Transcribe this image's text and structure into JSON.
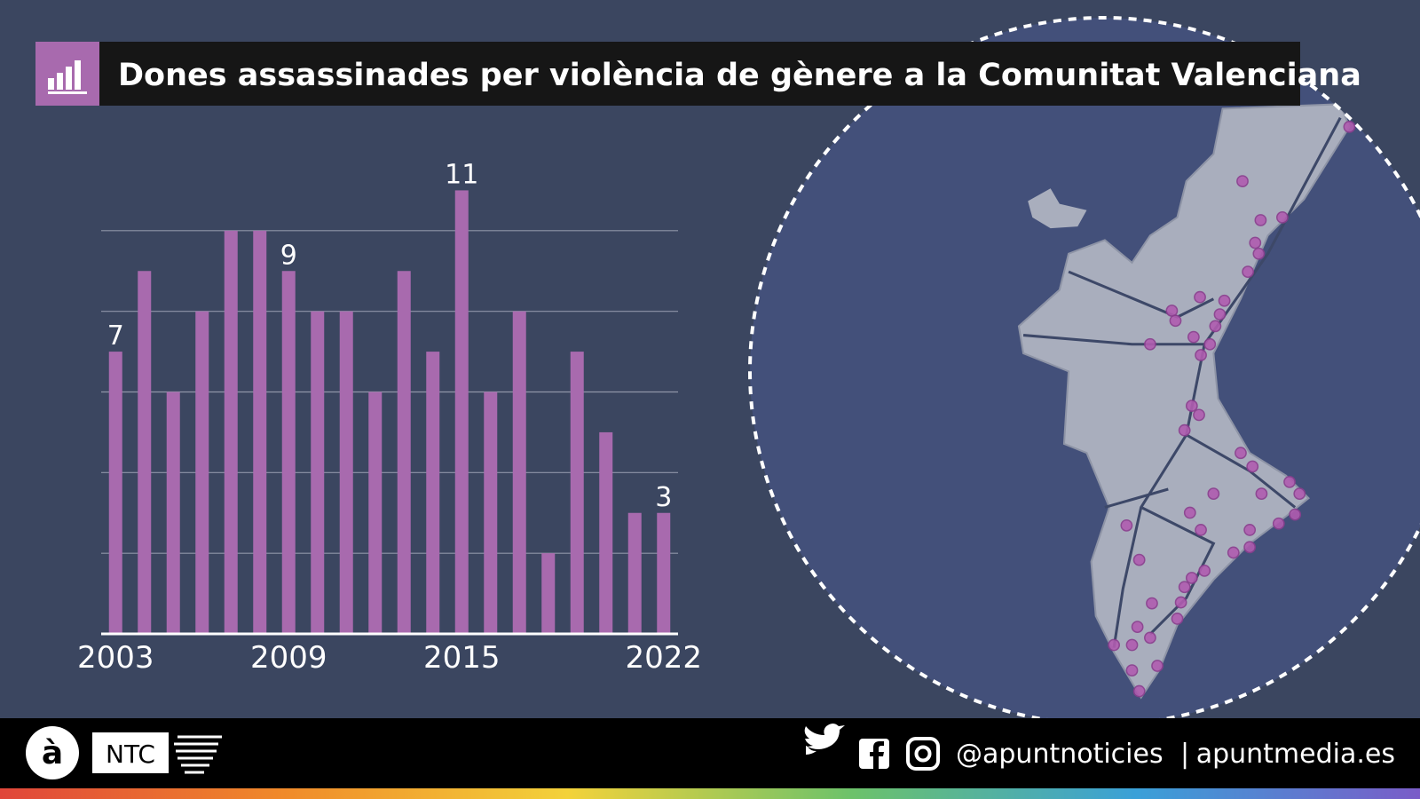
{
  "chart_data": {
    "type": "bar",
    "title": "Dones assassinades per violència de gènere a la Comunitat Valenciana",
    "categories": [
      "2003",
      null,
      null,
      null,
      null,
      null,
      "2009",
      null,
      null,
      null,
      null,
      null,
      "2015",
      null,
      null,
      null,
      null,
      null,
      null,
      "2022"
    ],
    "values": [
      7,
      9,
      6,
      8,
      10,
      10,
      9,
      8,
      8,
      6,
      9,
      7,
      11,
      6,
      8,
      2,
      7,
      5,
      3,
      3
    ],
    "value_labels": [
      "7",
      null,
      null,
      null,
      null,
      null,
      "9",
      null,
      null,
      null,
      null,
      null,
      "11",
      null,
      null,
      null,
      null,
      null,
      null,
      "3"
    ],
    "color": "#a86aae",
    "ylim": [
      0,
      12
    ],
    "yticks": [
      2,
      4,
      6,
      8,
      10
    ],
    "ytick_labels": false,
    "grid": true
  },
  "footer": {
    "logo": "à",
    "brand": "NTC",
    "handle": "@apuntnoticies",
    "separator": "|",
    "website": "apuntmedia.es"
  }
}
